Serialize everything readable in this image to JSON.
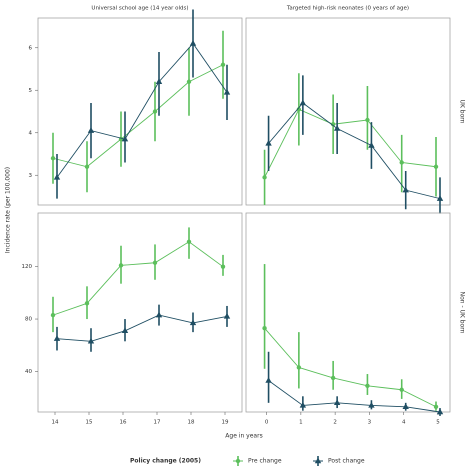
{
  "figure": {
    "ylabel": "Incidence rate (per 100,000)",
    "xlabel": "Age in years",
    "legend_title": "Policy change (2005)"
  },
  "chart_data": [
    {
      "type": "line",
      "title": "Universal school age (14 year olds)",
      "x": [
        14,
        15,
        16,
        17,
        18,
        19
      ],
      "xlim": [
        13.5,
        19.5
      ],
      "ylim": [
        2.3,
        6.7
      ],
      "yticks": [
        3,
        4,
        5,
        6
      ],
      "series": [
        {
          "name": "Pre change",
          "color": "#5cbf5c",
          "values": [
            3.4,
            3.2,
            3.85,
            4.5,
            5.2,
            5.6
          ],
          "lower": [
            2.8,
            2.6,
            3.2,
            3.8,
            4.4,
            4.8
          ],
          "upper": [
            4.0,
            3.8,
            4.5,
            5.2,
            6.0,
            6.4
          ]
        },
        {
          "name": "Post change",
          "color": "#1f4e63",
          "values": [
            2.95,
            4.05,
            3.85,
            5.2,
            6.1,
            4.95
          ],
          "lower": [
            2.45,
            3.4,
            3.3,
            4.4,
            5.3,
            4.3
          ],
          "upper": [
            3.5,
            4.7,
            4.5,
            5.9,
            6.9,
            5.6
          ]
        }
      ]
    },
    {
      "type": "line",
      "title": "Targeted high-risk neonates (0 years of age)",
      "row_label": "UK born",
      "x": [
        0,
        1,
        2,
        3,
        4,
        5
      ],
      "xlim": [
        -0.6,
        5.35
      ],
      "ylim": [
        2.3,
        6.7
      ],
      "series": [
        {
          "color": "#5cbf5c",
          "values": [
            2.95,
            4.55,
            4.2,
            4.3,
            3.3,
            3.2
          ],
          "lower": [
            2.3,
            3.7,
            3.5,
            3.6,
            2.6,
            2.5
          ],
          "upper": [
            3.6,
            5.4,
            4.9,
            5.1,
            3.95,
            3.9
          ]
        },
        {
          "color": "#1f4e63",
          "values": [
            3.75,
            4.7,
            4.1,
            3.7,
            2.65,
            2.45
          ],
          "lower": [
            3.1,
            3.95,
            3.5,
            3.15,
            2.2,
            2.1
          ],
          "upper": [
            4.4,
            5.35,
            4.7,
            4.25,
            3.1,
            2.95
          ]
        }
      ]
    },
    {
      "type": "line",
      "x": [
        14,
        15,
        16,
        17,
        18,
        19
      ],
      "xlim": [
        13.5,
        19.5
      ],
      "xticks": [
        14,
        15,
        16,
        17,
        18,
        19
      ],
      "ylim": [
        9,
        161
      ],
      "yticks": [
        40,
        80,
        120
      ],
      "series": [
        {
          "color": "#5cbf5c",
          "values": [
            83,
            92,
            121,
            123,
            139,
            120
          ],
          "lower": [
            70,
            80,
            107,
            110,
            126,
            113
          ],
          "upper": [
            97,
            105,
            136,
            137,
            150,
            129
          ]
        },
        {
          "color": "#1f4e63",
          "values": [
            65,
            63,
            71,
            83,
            77,
            82
          ],
          "lower": [
            56,
            55,
            63,
            75,
            70,
            74
          ],
          "upper": [
            74,
            73,
            80,
            91,
            85,
            90
          ]
        }
      ]
    },
    {
      "type": "line",
      "row_label": "Non - UK born",
      "x": [
        0,
        1,
        2,
        3,
        4,
        5
      ],
      "xlim": [
        -0.6,
        5.35
      ],
      "xticks": [
        0,
        1,
        2,
        3,
        4,
        5
      ],
      "ylim": [
        9,
        161
      ],
      "series": [
        {
          "color": "#5cbf5c",
          "values": [
            73,
            43,
            35,
            29,
            26,
            13
          ],
          "lower": [
            42,
            27,
            26,
            22,
            19,
            10
          ],
          "upper": [
            122,
            70,
            48,
            38,
            34,
            17
          ]
        },
        {
          "color": "#1f4e63",
          "values": [
            33,
            14,
            16,
            14,
            13,
            9
          ],
          "lower": [
            16,
            10,
            12,
            11,
            10,
            6
          ],
          "upper": [
            55,
            21,
            21,
            18,
            16,
            12
          ]
        }
      ]
    }
  ]
}
